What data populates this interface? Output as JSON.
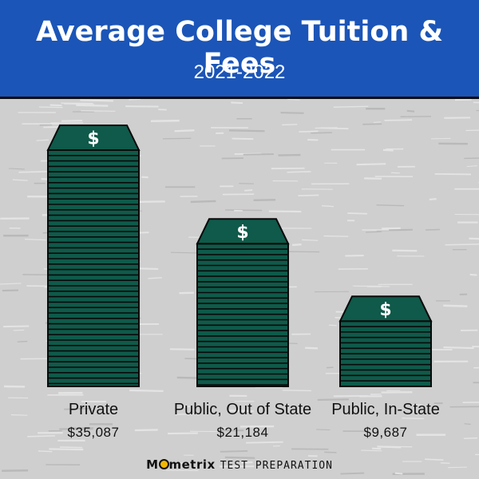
{
  "header": {
    "title": "Average College Tuition & Fees",
    "subtitle": "2021-2022"
  },
  "brand": {
    "name_before": "M",
    "name_after": "metrix",
    "tagline": "TEST PREPARATION"
  },
  "colors": {
    "header_bg": "#1b55b7",
    "background": "#cfcfcf",
    "stack_fill": "#0f5a4a",
    "stack_lines": "#0a0a0a",
    "logo_accent": "#f2b705"
  },
  "icon": "dollar-sign-icon",
  "dollar_glyph": "$",
  "chart_data": {
    "type": "bar",
    "title": "Average College Tuition & Fees",
    "subtitle": "2021-2022",
    "categories": [
      "Private",
      "Public, Out of State",
      "Public, In-State"
    ],
    "values": [
      35087,
      21184,
      9687
    ],
    "value_labels": [
      "$35,087",
      "$21,184",
      "$9,687"
    ],
    "xlabel": "",
    "ylabel": "",
    "ylim": [
      0,
      35087
    ],
    "grid": false,
    "legend": "none"
  }
}
